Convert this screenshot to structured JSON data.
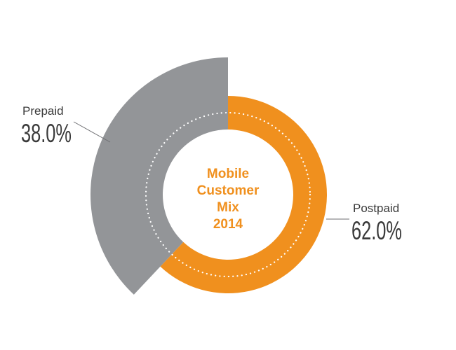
{
  "chart_data": {
    "type": "pie",
    "title_lines": [
      "Mobile",
      "Customer",
      "Mix",
      "2014"
    ],
    "slices": [
      {
        "label": "Prepaid",
        "value": 38.0,
        "display": "38.0%",
        "color": "#939598"
      },
      {
        "label": "Postpaid",
        "value": 62.0,
        "display": "62.0%",
        "color": "#f0901e"
      }
    ],
    "center_text_color": "#f0901e",
    "dotted_ring_color": "#ffffff",
    "leader_line_color": "#6d6e71"
  }
}
